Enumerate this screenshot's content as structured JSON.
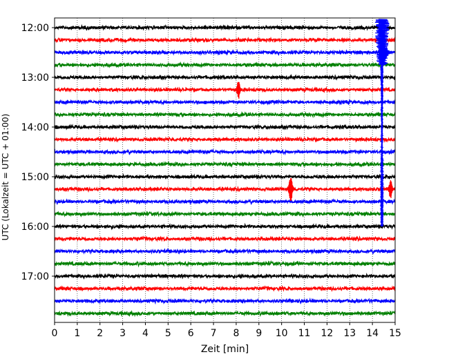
{
  "chart_data": {
    "type": "line",
    "title": "",
    "xlabel": "Zeit  [min]",
    "ylabel": "UTC (Lokalzeit = UTC + 01:00)",
    "xlim": [
      0,
      15
    ],
    "x_ticks": [
      0,
      1,
      2,
      3,
      4,
      5,
      6,
      7,
      8,
      9,
      10,
      11,
      12,
      13,
      14,
      15
    ],
    "x_tick_labels": [
      "0",
      "1",
      "2",
      "3",
      "4",
      "5",
      "6",
      "7",
      "8",
      "9",
      "10",
      "11",
      "12",
      "13",
      "14",
      "15"
    ],
    "y_ticks": [
      {
        "label": "12:00",
        "row": 0
      },
      {
        "label": "13:00",
        "row": 4
      },
      {
        "label": "14:00",
        "row": 8
      },
      {
        "label": "15:00",
        "row": 12
      },
      {
        "label": "16:00",
        "row": 16
      },
      {
        "label": "17:00",
        "row": 20
      }
    ],
    "grid_x": true,
    "trace_interval_minutes": 15,
    "trace_colors": [
      "#000000",
      "#ff0000",
      "#0000ff",
      "#008000"
    ],
    "traces": [
      {
        "start": "12:00",
        "color": "#000000"
      },
      {
        "start": "12:15",
        "color": "#ff0000"
      },
      {
        "start": "12:30",
        "color": "#0000ff"
      },
      {
        "start": "12:45",
        "color": "#008000"
      },
      {
        "start": "13:00",
        "color": "#000000"
      },
      {
        "start": "13:15",
        "color": "#ff0000"
      },
      {
        "start": "13:30",
        "color": "#0000ff"
      },
      {
        "start": "13:45",
        "color": "#008000"
      },
      {
        "start": "14:00",
        "color": "#000000"
      },
      {
        "start": "14:15",
        "color": "#ff0000"
      },
      {
        "start": "14:30",
        "color": "#0000ff"
      },
      {
        "start": "14:45",
        "color": "#008000"
      },
      {
        "start": "15:00",
        "color": "#000000"
      },
      {
        "start": "15:15",
        "color": "#ff0000"
      },
      {
        "start": "15:30",
        "color": "#0000ff"
      },
      {
        "start": "15:45",
        "color": "#008000"
      },
      {
        "start": "16:00",
        "color": "#000000"
      },
      {
        "start": "16:15",
        "color": "#ff0000"
      },
      {
        "start": "16:30",
        "color": "#0000ff"
      },
      {
        "start": "16:45",
        "color": "#008000"
      },
      {
        "start": "17:00",
        "color": "#000000"
      },
      {
        "start": "17:15",
        "color": "#ff0000"
      },
      {
        "start": "17:30",
        "color": "#0000ff"
      },
      {
        "start": "17:45",
        "color": "#008000"
      }
    ]
  }
}
